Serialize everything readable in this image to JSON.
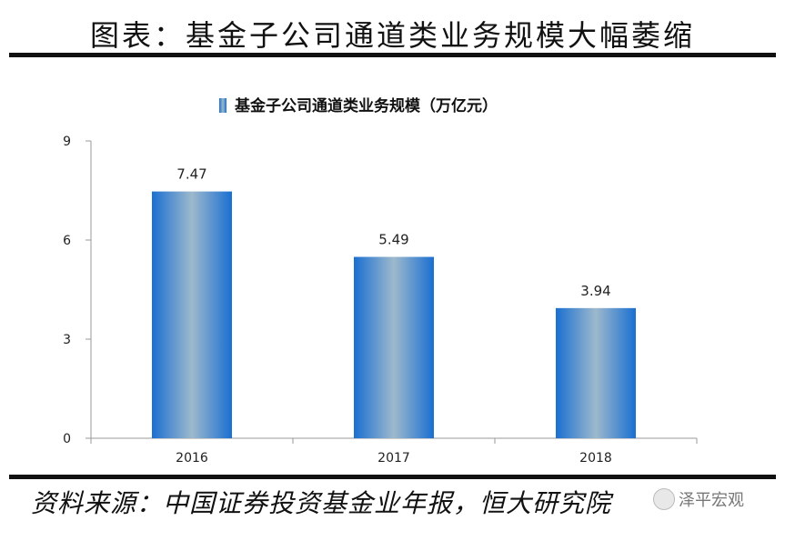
{
  "header": {
    "title": "图表：基金子公司通道类业务规模大幅萎缩"
  },
  "footer": {
    "source": "资料来源：中国证券投资基金业年报，恒大研究院",
    "watermark": "泽平宏观"
  },
  "chart_data": {
    "type": "bar",
    "categories": [
      "2016",
      "2017",
      "2018"
    ],
    "series": [
      {
        "name": "基金子公司通道类业务规模（万亿元）",
        "values": [
          7.47,
          5.49,
          3.94
        ]
      }
    ],
    "data_labels": [
      "7.47",
      "5.49",
      "3.94"
    ],
    "yticks": [
      "0",
      "3",
      "6",
      "9"
    ],
    "ylim": [
      0,
      9
    ],
    "legend_position": "top",
    "grid": false,
    "colors": {
      "bar_edge": "#1a6fd1",
      "bar_center": "#9db9cc"
    }
  }
}
